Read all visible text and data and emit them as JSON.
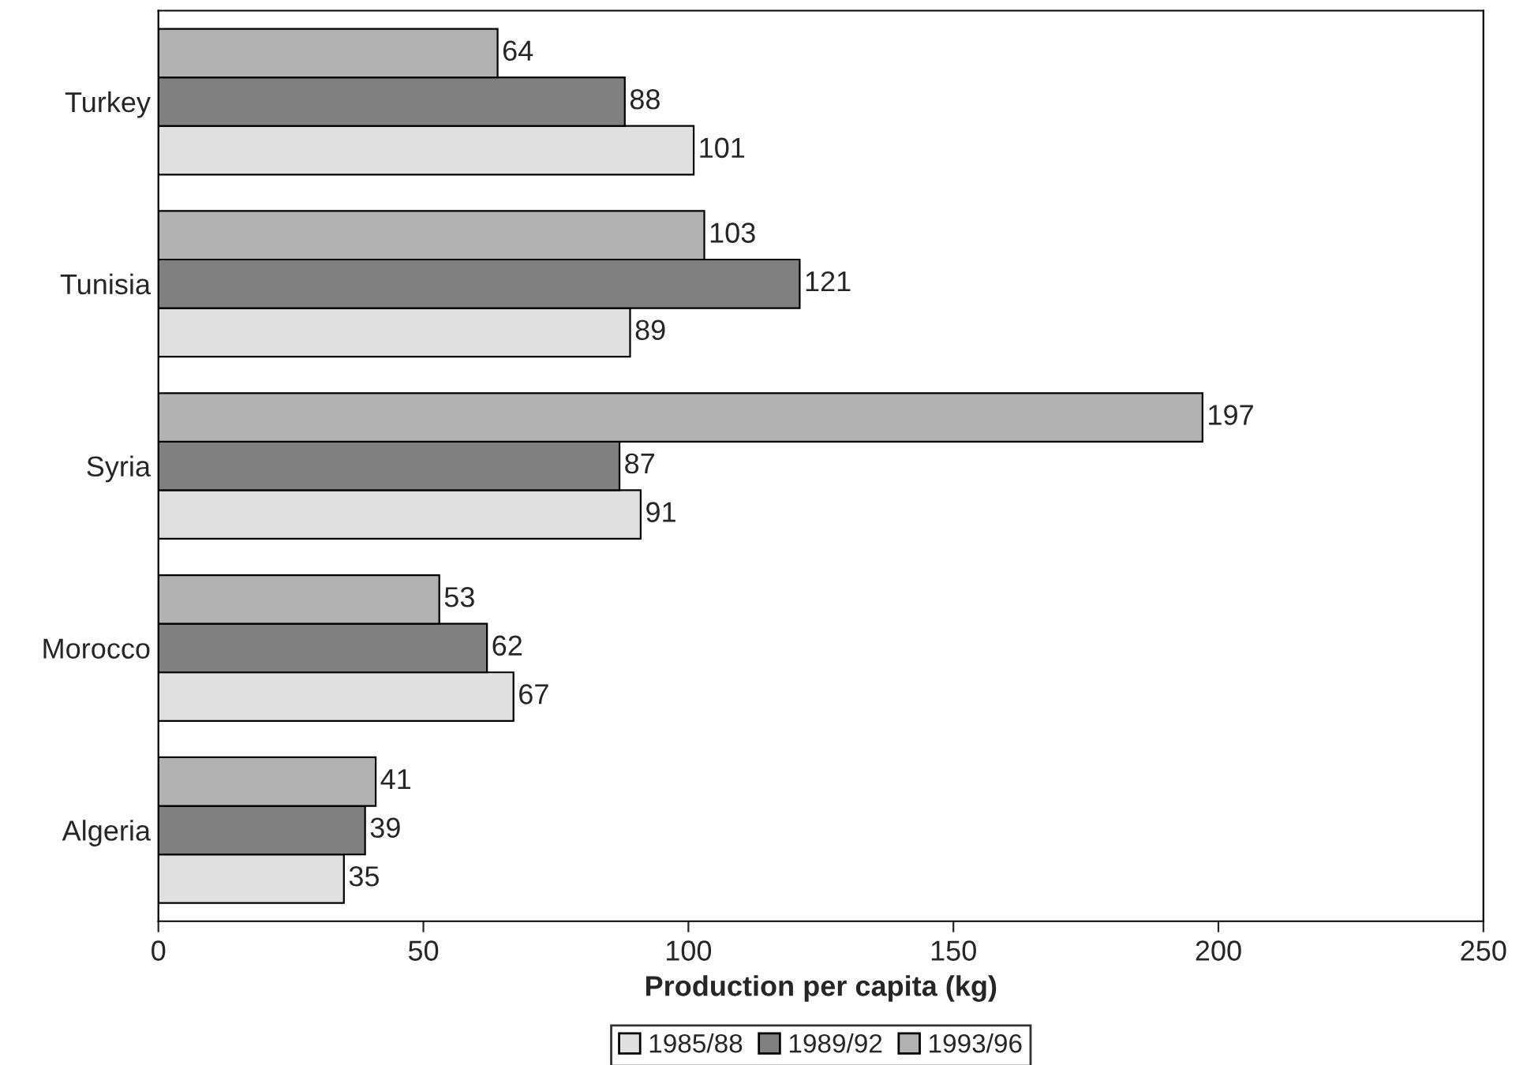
{
  "chart_data": {
    "type": "bar",
    "orientation": "horizontal",
    "xlabel": "Production per capita (kg)",
    "categories": [
      "Turkey",
      "Tunisia",
      "Syria",
      "Morocco",
      "Algeria"
    ],
    "series": [
      {
        "name": "1985/88",
        "color": "#e0e0e0",
        "values": [
          101,
          89,
          91,
          67,
          35
        ]
      },
      {
        "name": "1989/92",
        "color": "#808080",
        "values": [
          88,
          121,
          87,
          62,
          39
        ]
      },
      {
        "name": "1993/96",
        "color": "#b2b2b2",
        "values": [
          64,
          103,
          197,
          53,
          41
        ]
      }
    ],
    "xlim": [
      0,
      250
    ],
    "xticks": [
      0,
      50,
      100,
      150,
      200,
      250
    ],
    "data_labels": true,
    "grid": false,
    "legend": "bottom"
  }
}
